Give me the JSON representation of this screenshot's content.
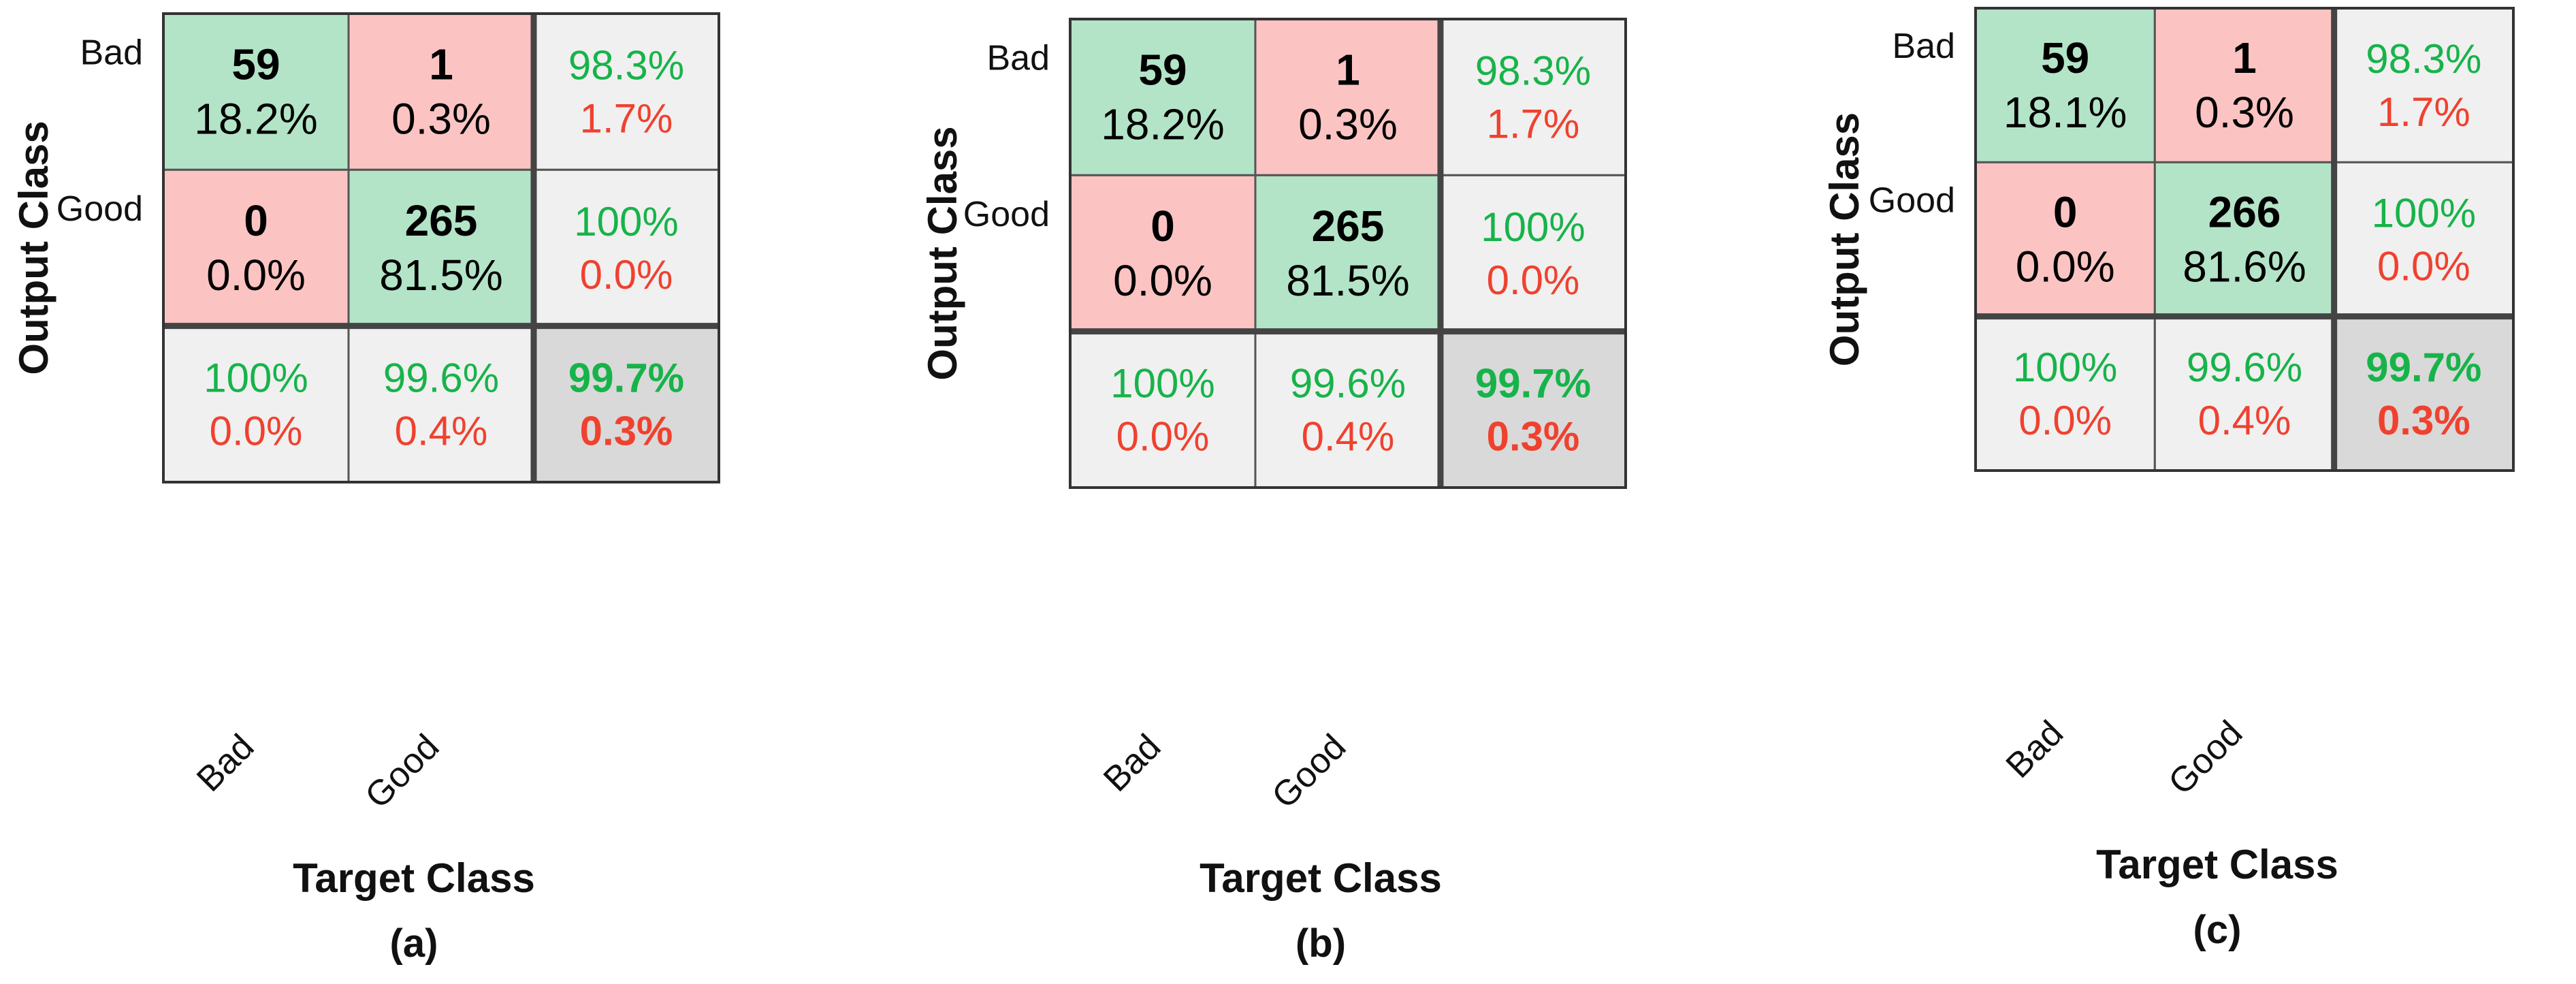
{
  "figure": {
    "y_axis_label": "Output Class",
    "x_axis_label": "Target Class",
    "class_labels": [
      "Bad",
      "Good"
    ]
  },
  "colors": {
    "correct_cell": "#b3e4c7",
    "wrong_cell": "#fbc4c2",
    "summary_cell": "#f0f0f0",
    "overall_cell": "#d9d9d9",
    "correct_text": "#17b34a",
    "error_text": "#f0412f",
    "grid_line": "#555555"
  },
  "chart_data": [
    {
      "type": "table",
      "panel_label": "(a)",
      "row_labels": [
        "Bad",
        "Good"
      ],
      "col_labels": [
        "Bad",
        "Good"
      ],
      "xlabel": "Target Class",
      "ylabel": "Output Class",
      "cells": [
        [
          {
            "count": "59",
            "pct": "18.2%"
          },
          {
            "count": "1",
            "pct": "0.3%"
          }
        ],
        [
          {
            "count": "0",
            "pct": "0.0%"
          },
          {
            "count": "265",
            "pct": "81.5%"
          }
        ]
      ],
      "row_summary": [
        {
          "correct": "98.3%",
          "error": "1.7%"
        },
        {
          "correct": "100%",
          "error": "0.0%"
        }
      ],
      "col_summary": [
        {
          "correct": "100%",
          "error": "0.0%"
        },
        {
          "correct": "99.6%",
          "error": "0.4%"
        }
      ],
      "overall": {
        "correct": "99.7%",
        "error": "0.3%"
      }
    },
    {
      "type": "table",
      "panel_label": "(b)",
      "row_labels": [
        "Bad",
        "Good"
      ],
      "col_labels": [
        "Bad",
        "Good"
      ],
      "xlabel": "Target Class",
      "ylabel": "Output Class",
      "cells": [
        [
          {
            "count": "59",
            "pct": "18.2%"
          },
          {
            "count": "1",
            "pct": "0.3%"
          }
        ],
        [
          {
            "count": "0",
            "pct": "0.0%"
          },
          {
            "count": "265",
            "pct": "81.5%"
          }
        ]
      ],
      "row_summary": [
        {
          "correct": "98.3%",
          "error": "1.7%"
        },
        {
          "correct": "100%",
          "error": "0.0%"
        }
      ],
      "col_summary": [
        {
          "correct": "100%",
          "error": "0.0%"
        },
        {
          "correct": "99.6%",
          "error": "0.4%"
        }
      ],
      "overall": {
        "correct": "99.7%",
        "error": "0.3%"
      }
    },
    {
      "type": "table",
      "panel_label": "(c)",
      "row_labels": [
        "Bad",
        "Good"
      ],
      "col_labels": [
        "Bad",
        "Good"
      ],
      "xlabel": "Target Class",
      "ylabel": "Output Class",
      "cells": [
        [
          {
            "count": "59",
            "pct": "18.1%"
          },
          {
            "count": "1",
            "pct": "0.3%"
          }
        ],
        [
          {
            "count": "0",
            "pct": "0.0%"
          },
          {
            "count": "266",
            "pct": "81.6%"
          }
        ]
      ],
      "row_summary": [
        {
          "correct": "98.3%",
          "error": "1.7%"
        },
        {
          "correct": "100%",
          "error": "0.0%"
        }
      ],
      "col_summary": [
        {
          "correct": "100%",
          "error": "0.0%"
        },
        {
          "correct": "99.6%",
          "error": "0.4%"
        }
      ],
      "overall": {
        "correct": "99.7%",
        "error": "0.3%"
      }
    }
  ]
}
